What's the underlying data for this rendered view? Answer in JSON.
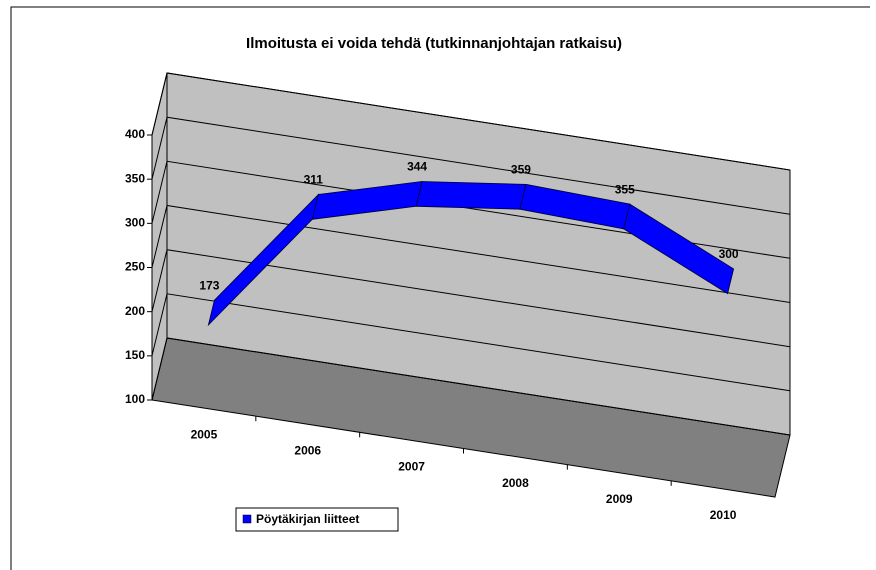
{
  "chart_data": {
    "type": "line",
    "title": "Ilmoitusta ei voida tehdä (tutkinnanjohtajan ratkaisu)",
    "categories": [
      "2005",
      "2006",
      "2007",
      "2008",
      "2009",
      "2010"
    ],
    "series": [
      {
        "name": "Pöytäkirjan liitteet",
        "color": "#0000ff",
        "values": [
          173,
          311,
          344,
          359,
          355,
          300
        ]
      }
    ],
    "ylim": [
      100,
      400
    ],
    "yticks": [
      100,
      150,
      200,
      250,
      300,
      350,
      400
    ],
    "grid": true,
    "legend": "bottom-left"
  }
}
